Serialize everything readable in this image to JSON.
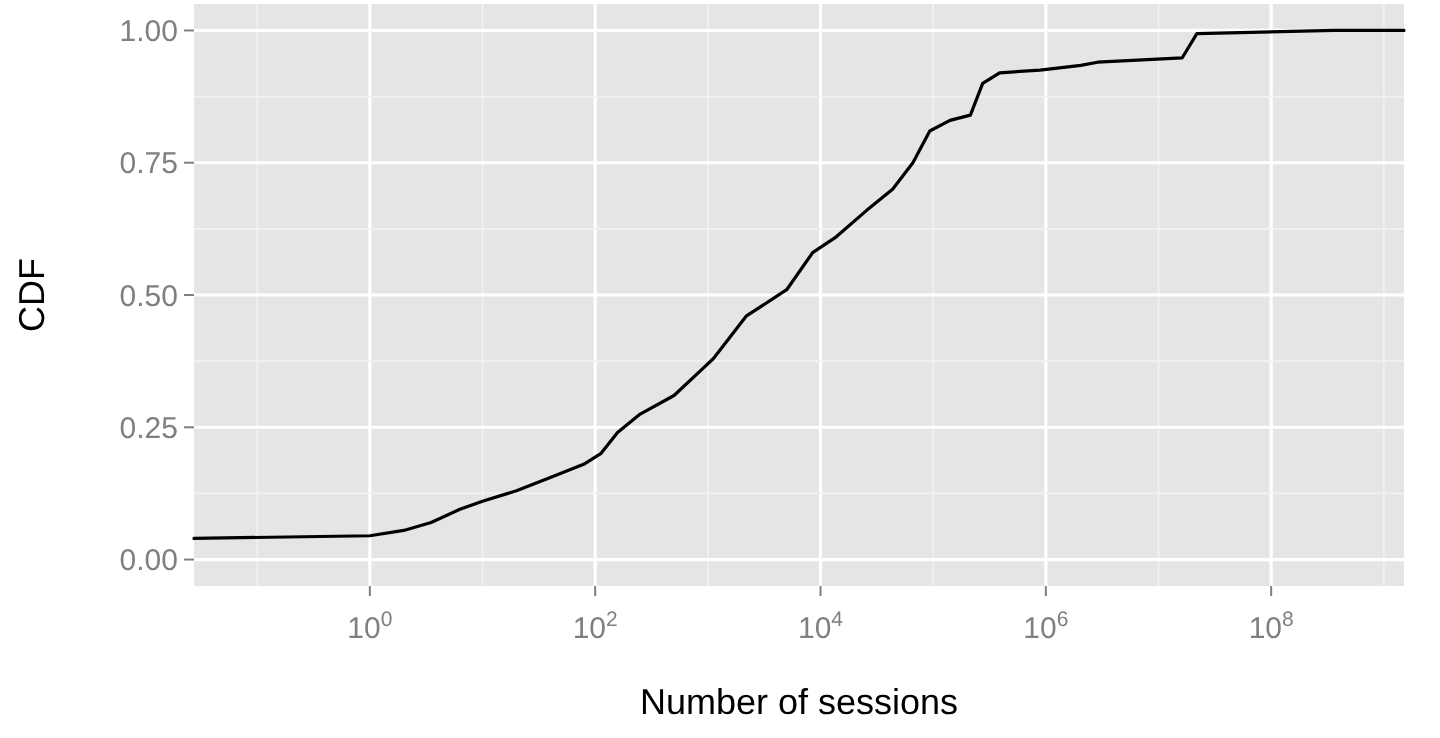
{
  "chart_data": {
    "type": "line",
    "xlabel": "Number of sessions",
    "ylabel": "CDF",
    "log": "x",
    "grid": true,
    "xlim": [
      0.0275,
      1510000000
    ],
    "ylim": [
      -0.05,
      1.05
    ],
    "xticks": [
      {
        "value": 0.1,
        "label": null
      },
      {
        "value": 1,
        "label": "10$^{0}$"
      },
      {
        "value": 10,
        "label": null
      },
      {
        "value": 100,
        "label": "10$^{2}$"
      },
      {
        "value": 1000,
        "label": null
      },
      {
        "value": 10000,
        "label": "10$^{4}$"
      },
      {
        "value": 100000,
        "label": null
      },
      {
        "value": 1000000,
        "label": "10$^{6}$"
      },
      {
        "value": 10000000,
        "label": null
      },
      {
        "value": 100000000,
        "label": "10$^{8}$"
      },
      {
        "value": 1000000000,
        "label": null
      }
    ],
    "yticks": [
      {
        "value": 0,
        "label": "0.00"
      },
      {
        "value": 0.125,
        "label": null
      },
      {
        "value": 0.25,
        "label": "0.25"
      },
      {
        "value": 0.375,
        "label": null
      },
      {
        "value": 0.5,
        "label": "0.50"
      },
      {
        "value": 0.625,
        "label": null
      },
      {
        "value": 0.75,
        "label": "0.75"
      },
      {
        "value": 0.875,
        "label": null
      },
      {
        "value": 1,
        "label": "1.00"
      }
    ],
    "series": [
      {
        "color": "#000000",
        "x": [
          0.0275,
          1,
          2,
          3.5,
          6.3,
          10,
          20,
          40,
          79,
          112,
          158,
          251,
          501,
          891,
          1122,
          2188,
          5012,
          8511,
          13800,
          25700,
          43650,
          66070,
          93300,
          141000,
          214000,
          275000,
          389000,
          891000,
          2040000,
          2880000,
          16200000,
          21900000,
          363000000,
          1510000000
        ],
        "values": [
          0.04,
          0.045,
          0.055,
          0.07,
          0.095,
          0.11,
          0.13,
          0.155,
          0.18,
          0.2,
          0.24,
          0.275,
          0.31,
          0.36,
          0.38,
          0.46,
          0.51,
          0.58,
          0.61,
          0.66,
          0.7,
          0.75,
          0.81,
          0.83,
          0.84,
          0.9,
          0.92,
          0.925,
          0.934,
          0.94,
          0.948,
          0.994,
          1.0,
          1.0
        ]
      }
    ]
  }
}
